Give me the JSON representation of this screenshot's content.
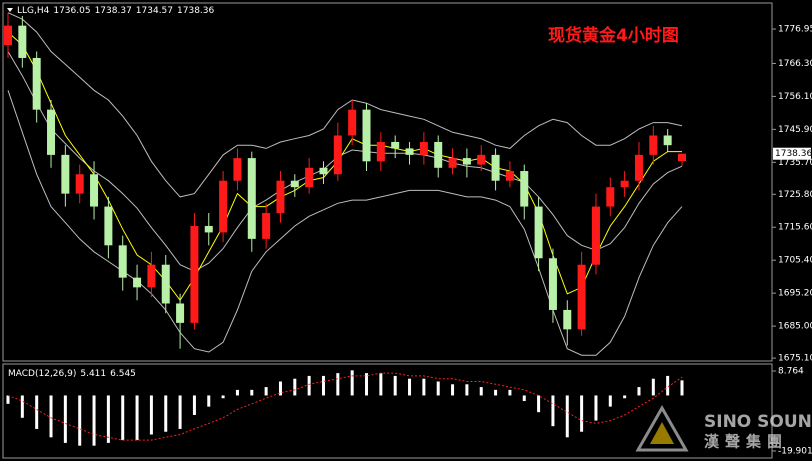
{
  "chart_data": {
    "type": "candlestick",
    "symbol": "LLG,H4",
    "title": "现货黄金4小时图",
    "up_color": "#ff1a1a",
    "down_color": "#b8f0a8",
    "open": [
      1772,
      1778,
      1768,
      1752,
      1738,
      1726,
      1732,
      1722,
      1710,
      1700,
      1697,
      1704,
      1692,
      1686,
      1716,
      1714,
      1730,
      1737,
      1712,
      1720,
      1730,
      1728,
      1734,
      1732,
      1744,
      1752,
      1736,
      1742,
      1740,
      1738,
      1742,
      1734,
      1737,
      1735,
      1738,
      1730,
      1733,
      1722,
      1706,
      1690,
      1684,
      1704,
      1722,
      1728,
      1730,
      1738,
      1744,
      1736.05
    ],
    "high": [
      1782,
      1781,
      1770,
      1755,
      1741,
      1735,
      1736,
      1725,
      1713,
      1704,
      1708,
      1707,
      1695,
      1720,
      1720,
      1733,
      1740,
      1739,
      1723,
      1733,
      1732,
      1737,
      1736,
      1748,
      1755,
      1754,
      1745,
      1744,
      1742,
      1745,
      1744,
      1740,
      1740,
      1741,
      1740,
      1736,
      1735,
      1725,
      1709,
      1693,
      1708,
      1726,
      1731,
      1733,
      1742,
      1747,
      1746,
      1738.37
    ],
    "low": [
      1768,
      1765,
      1748,
      1734,
      1722,
      1723,
      1718,
      1706,
      1696,
      1693,
      1694,
      1689,
      1678,
      1684,
      1710,
      1711,
      1727,
      1708,
      1709,
      1717,
      1725,
      1726,
      1729,
      1730,
      1741,
      1733,
      1733,
      1737,
      1735,
      1735,
      1731,
      1732,
      1731,
      1733,
      1727,
      1728,
      1718,
      1702,
      1686,
      1679,
      1682,
      1701,
      1719,
      1725,
      1727,
      1735,
      1739,
      1734.57
    ],
    "close": [
      1778,
      1768,
      1752,
      1738,
      1726,
      1732,
      1722,
      1710,
      1700,
      1697,
      1704,
      1692,
      1686,
      1716,
      1714,
      1730,
      1737,
      1712,
      1720,
      1730,
      1728,
      1734,
      1732,
      1744,
      1752,
      1736,
      1742,
      1740,
      1738,
      1742,
      1734,
      1737,
      1735,
      1738,
      1730,
      1733,
      1722,
      1706,
      1690,
      1684,
      1704,
      1722,
      1728,
      1730,
      1738,
      1744,
      1741,
      1738.36
    ],
    "overlays": [
      {
        "color": "#bdbdbd",
        "values": [
          1782,
          1780,
          1776,
          1770,
          1766,
          1762,
          1758,
          1755,
          1750,
          1744,
          1736,
          1730,
          1725,
          1726,
          1732,
          1738,
          1741,
          1741,
          1740,
          1742,
          1743,
          1744,
          1746,
          1752,
          1755,
          1754,
          1752,
          1751,
          1750,
          1749,
          1747,
          1745,
          1744,
          1743,
          1741,
          1740,
          1744,
          1747,
          1749,
          1748,
          1744,
          1741,
          1741,
          1743,
          1746,
          1748,
          1748,
          1747
        ]
      },
      {
        "color": "#bdbdbd",
        "values": [
          1770,
          1762.5,
          1754,
          1746,
          1741.5,
          1737,
          1733,
          1730,
          1726,
          1721.5,
          1715.5,
          1710,
          1704,
          1702,
          1704.5,
          1709,
          1715.5,
          1721.5,
          1724,
          1727,
          1729.5,
          1731.5,
          1733.5,
          1737.5,
          1739.5,
          1739,
          1738.5,
          1738.5,
          1738.5,
          1738,
          1737,
          1735.5,
          1734.5,
          1734,
          1732.5,
          1731,
          1729.5,
          1725,
          1719.5,
          1713,
          1710,
          1708.5,
          1710.5,
          1715.5,
          1723,
          1729,
          1732.5,
          1734.5
        ]
      },
      {
        "color": "#bdbdbd",
        "values": [
          1758,
          1745,
          1732,
          1722,
          1717,
          1712,
          1708,
          1705,
          1702,
          1699,
          1695,
          1690,
          1683,
          1678,
          1677,
          1680,
          1690,
          1702,
          1708,
          1712,
          1716,
          1719,
          1721,
          1723,
          1724,
          1724,
          1725,
          1726,
          1727,
          1727,
          1727,
          1726,
          1725,
          1725,
          1724,
          1722,
          1715,
          1703,
          1690,
          1678,
          1676,
          1676,
          1680,
          1688,
          1700,
          1710,
          1717,
          1722
        ]
      },
      {
        "color": "#ffff00",
        "values": [
          1776,
          1772,
          1764,
          1754,
          1744,
          1738,
          1732,
          1724,
          1715,
          1707,
          1704,
          1699,
          1693,
          1700,
          1708,
          1716,
          1726,
          1722,
          1722,
          1725,
          1727,
          1730,
          1731,
          1736,
          1743,
          1741,
          1741,
          1740,
          1739,
          1740,
          1738,
          1737,
          1736,
          1737,
          1734,
          1733,
          1729,
          1720,
          1707,
          1695,
          1697,
          1707,
          1716,
          1722,
          1729,
          1736,
          1739,
          1739
        ]
      }
    ],
    "ylim": [
      1674.2,
      1784.7
    ],
    "yticks": [
      1776.95,
      {
        "value": 1766.3,
        "label": "1766.30"
      },
      {
        "value": 1756.1,
        "label": "1756.10"
      },
      {
        "value": 1745.9,
        "label": "1745.90"
      },
      {
        "value": 1735.7,
        "label": "1735.70"
      },
      {
        "value": 1725.8,
        "label": "1725.80"
      },
      {
        "value": 1715.6,
        "label": "1715.60"
      },
      {
        "value": 1705.4,
        "label": "1705.40"
      },
      {
        "value": 1695.2,
        "label": "1695.20"
      },
      {
        "value": 1685,
        "label": "1685.00"
      },
      {
        "value": 1675.1,
        "label": "1675.10"
      }
    ],
    "macd": {
      "name": "MACD(12,26,9)",
      "hist_color": "#ffffff",
      "signal_color": "#ff2020",
      "histogram": [
        -3,
        -8,
        -12,
        -15,
        -17,
        -18,
        -18,
        -17,
        -16,
        -16,
        -14,
        -13,
        -12,
        -7,
        -4,
        -1,
        2,
        2,
        3,
        5,
        6,
        7,
        7,
        8,
        9,
        8,
        8,
        7,
        6,
        6,
        5,
        4,
        4,
        3,
        2,
        2,
        -2,
        -6,
        -11,
        -15,
        -13,
        -9,
        -4,
        -1,
        3,
        6,
        7,
        5.411
      ],
      "signal": [
        0,
        -2,
        -5,
        -8,
        -10,
        -12,
        -14,
        -15,
        -16,
        -16,
        -16,
        -15,
        -14,
        -12,
        -10,
        -8,
        -5,
        -3,
        -1,
        1,
        2,
        4,
        5,
        6,
        7,
        7,
        8,
        8,
        7,
        7,
        6,
        6,
        5,
        5,
        4,
        3,
        2,
        0,
        -3,
        -6,
        -9,
        -10,
        -9,
        -7,
        -4,
        -1,
        3,
        6.545
      ],
      "ylim": [
        -22.41,
        11.27
      ],
      "yticks": [
        8.764,
        -19.901
      ]
    }
  },
  "watermark": {
    "brand": "SINO SOUND",
    "brand_cn": "漢聲集團"
  }
}
